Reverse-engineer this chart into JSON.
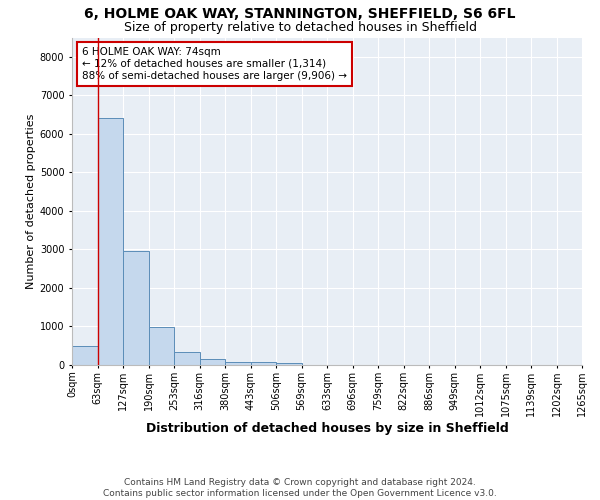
{
  "title_line1": "6, HOLME OAK WAY, STANNINGTON, SHEFFIELD, S6 6FL",
  "title_line2": "Size of property relative to detached houses in Sheffield",
  "xlabel": "Distribution of detached houses by size in Sheffield",
  "ylabel": "Number of detached properties",
  "bin_labels": [
    "0sqm",
    "63sqm",
    "127sqm",
    "190sqm",
    "253sqm",
    "316sqm",
    "380sqm",
    "443sqm",
    "506sqm",
    "569sqm",
    "633sqm",
    "696sqm",
    "759sqm",
    "822sqm",
    "886sqm",
    "949sqm",
    "1012sqm",
    "1075sqm",
    "1139sqm",
    "1202sqm",
    "1265sqm"
  ],
  "bar_values": [
    500,
    6400,
    2950,
    980,
    350,
    160,
    90,
    65,
    50,
    0,
    0,
    0,
    0,
    0,
    0,
    0,
    0,
    0,
    0,
    0
  ],
  "bar_color": "#c5d8ed",
  "bar_edge_color": "#5b8db8",
  "property_line_x": 1.0,
  "property_line_color": "#cc0000",
  "annotation_text": "6 HOLME OAK WAY: 74sqm\n← 12% of detached houses are smaller (1,314)\n88% of semi-detached houses are larger (9,906) →",
  "annotation_box_color": "#ffffff",
  "annotation_box_edge": "#cc0000",
  "ylim": [
    0,
    8500
  ],
  "yticks": [
    0,
    1000,
    2000,
    3000,
    4000,
    5000,
    6000,
    7000,
    8000
  ],
  "footnote": "Contains HM Land Registry data © Crown copyright and database right 2024.\nContains public sector information licensed under the Open Government Licence v3.0.",
  "background_color": "#ffffff",
  "plot_bg_color": "#e8eef5",
  "grid_color": "#ffffff",
  "title_fontsize": 10,
  "subtitle_fontsize": 9,
  "xlabel_fontsize": 9,
  "ylabel_fontsize": 8,
  "tick_fontsize": 7,
  "annotation_fontsize": 7.5,
  "footnote_fontsize": 6.5
}
